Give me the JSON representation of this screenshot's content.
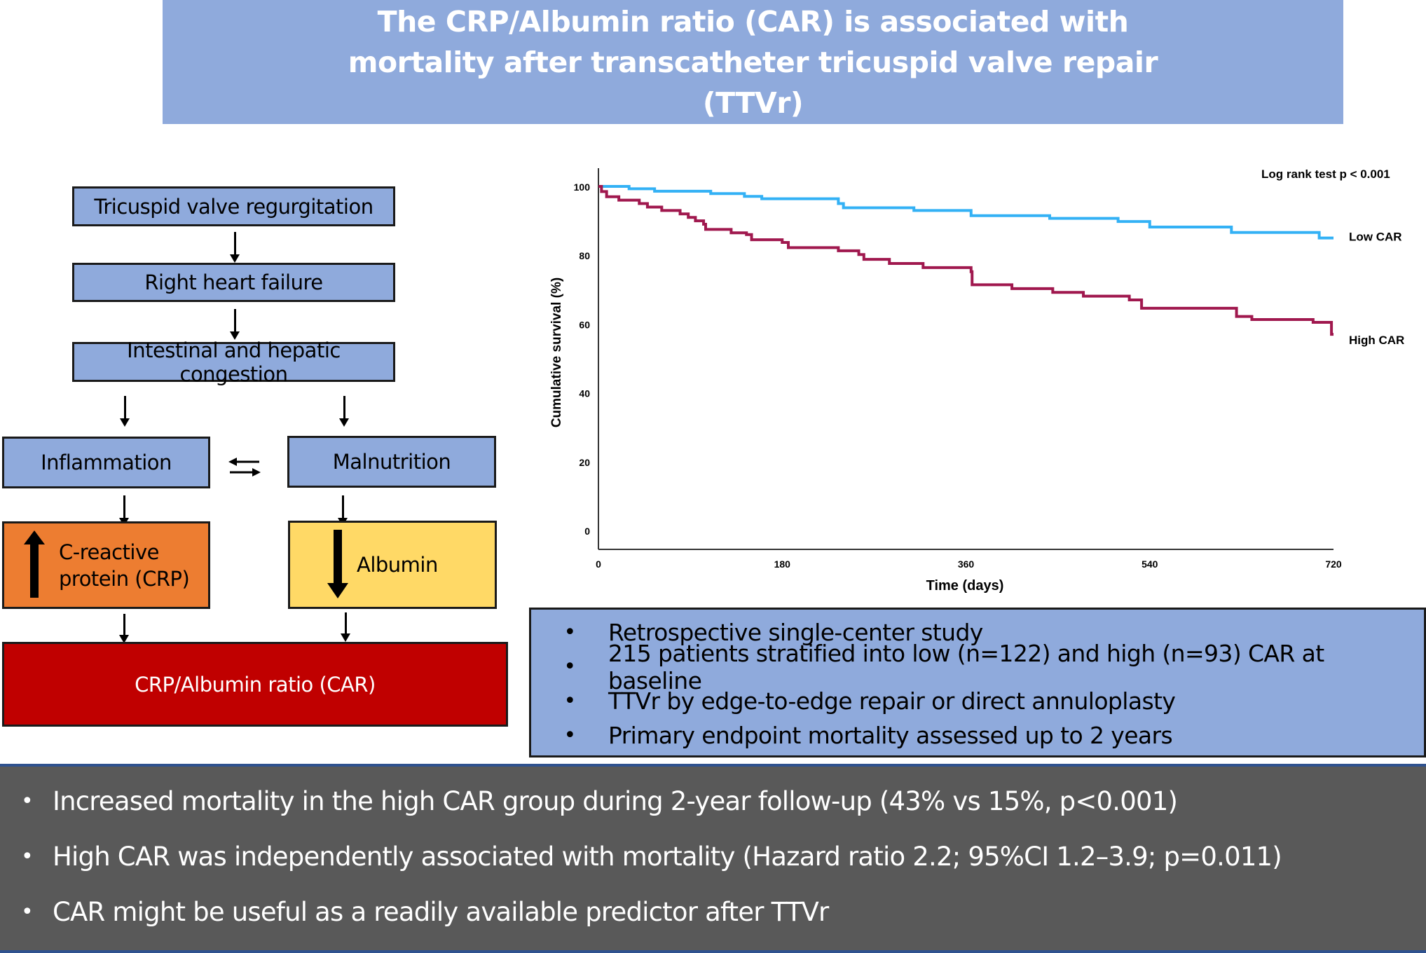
{
  "title": "The CRP/Albumin ratio (CAR) is associated with mortality after transcatheter tricuspid valve repair (TTVr)",
  "flowchart": {
    "step1": "Tricuspid valve regurgitation",
    "step2": "Right heart failure",
    "step3": "Intestinal and hepatic congestion",
    "inflammation": "Inflammation",
    "malnutrition": "Malnutrition",
    "crp_line1": "C-reactive",
    "crp_line2": "protein (CRP)",
    "albumin": "Albumin",
    "car": "CRP/Albumin ratio (CAR)",
    "colors": {
      "blue": "#8faadc",
      "orange": "#ed7d31",
      "yellow": "#ffd966",
      "red": "#c00000"
    }
  },
  "study_bullets": [
    "Retrospective single-center study",
    "215 patients stratified into low (n=122) and high (n=93) CAR at baseline",
    "TTVr by edge-to-edge repair or direct annuloplasty",
    "Primary endpoint mortality assessed up to 2 years"
  ],
  "summary_bullets": [
    "Increased mortality in the high CAR group during 2-year follow-up (43% vs 15%, p<0.001)",
    "High CAR was independently associated with mortality (Hazard ratio 2.2; 95%CI 1.2–3.9; p=0.011)",
    "CAR might be useful as a readily available predictor after TTVr"
  ],
  "bullet_char": "•",
  "chart_data": {
    "type": "line",
    "subtype": "kaplan-meier-step",
    "title": "",
    "annotation": "Log rank test p < 0.001",
    "xlabel": "Time (days)",
    "ylabel": "Cumulative survival (%)",
    "xlim": [
      0,
      720
    ],
    "ylim": [
      0,
      100
    ],
    "xticks": [
      0,
      180,
      360,
      540,
      720
    ],
    "yticks": [
      0,
      20,
      40,
      60,
      80,
      100
    ],
    "grid": false,
    "legend": "inline-right",
    "series": [
      {
        "name": "Low CAR",
        "color": "#33b1f5",
        "x": [
          0,
          30,
          55,
          110,
          143,
          160,
          235,
          240,
          309,
          365,
          442,
          509,
          540,
          620,
          706,
          720
        ],
        "y": [
          100,
          99.3,
          98.6,
          97.9,
          97.1,
          96.4,
          95.0,
          93.8,
          93.0,
          91.5,
          90.7,
          89.8,
          88.2,
          86.6,
          85.0,
          85.0
        ]
      },
      {
        "name": "High CAR",
        "color": "#a0184e",
        "x": [
          0,
          3,
          8,
          20,
          40,
          48,
          62,
          80,
          88,
          95,
          103,
          105,
          130,
          145,
          150,
          180,
          186,
          235,
          255,
          260,
          285,
          318,
          365,
          366,
          405,
          445,
          475,
          520,
          532,
          625,
          640,
          700,
          718,
          720
        ],
        "y": [
          100,
          98.5,
          97,
          96,
          95,
          94,
          93,
          92,
          91,
          90,
          89,
          87.5,
          86.5,
          86,
          84.5,
          83.7,
          82.2,
          81.3,
          80.2,
          78.8,
          77.6,
          76.4,
          75.2,
          71.4,
          70.3,
          69.2,
          68.1,
          67,
          64.6,
          62.2,
          61.3,
          60.5,
          57.0,
          57.0
        ]
      }
    ]
  }
}
